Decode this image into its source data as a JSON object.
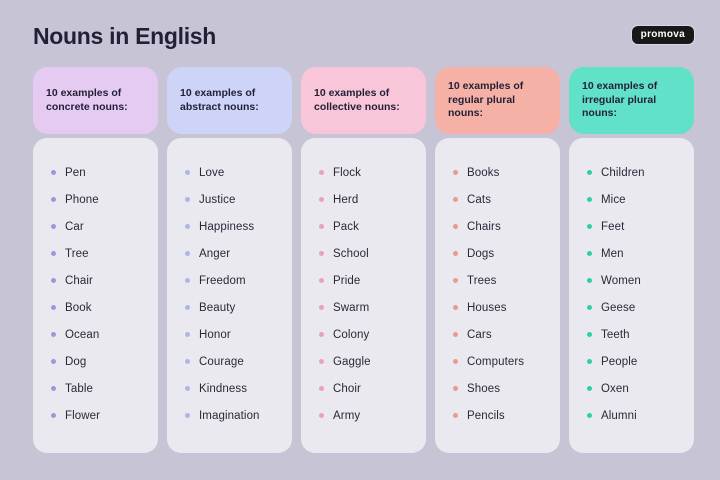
{
  "page": {
    "title": "Nouns in English",
    "logo": "promova",
    "background_color": "#c7c4d6",
    "card_color": "#eae9ef",
    "text_color": "#221f36"
  },
  "columns": [
    {
      "label": "10 examples of concrete nouns:",
      "header_bg": "#e5caf2",
      "bullet_color": "#a993d4",
      "items": [
        "Pen",
        "Phone",
        "Car",
        "Tree",
        "Chair",
        "Book",
        "Ocean",
        "Dog",
        "Table",
        "Flower"
      ]
    },
    {
      "label": "10 examples of abstract nouns:",
      "header_bg": "#cdd4f8",
      "bullet_color": "#abb6e9",
      "items": [
        "Love",
        "Justice",
        "Happiness",
        "Anger",
        "Freedom",
        "Beauty",
        "Honor",
        "Courage",
        "Kindness",
        "Imagination"
      ]
    },
    {
      "label": "10 examples of collective nouns:",
      "header_bg": "#f9c5d8",
      "bullet_color": "#eca0c0",
      "items": [
        "Flock",
        "Herd",
        "Pack",
        "School",
        "Pride",
        "Swarm",
        "Colony",
        "Gaggle",
        "Choir",
        "Army"
      ]
    },
    {
      "label": "10 examples of regular plural nouns:",
      "header_bg": "#f5b1a5",
      "bullet_color": "#eb9a8c",
      "items": [
        "Books",
        "Cats",
        "Chairs",
        "Dogs",
        "Trees",
        "Houses",
        "Cars",
        "Computers",
        "Shoes",
        "Pencils"
      ]
    },
    {
      "label": "10 examples of irregular plural nouns:",
      "header_bg": "#61e1c7",
      "bullet_color": "#2fcdab",
      "items": [
        "Children",
        "Mice",
        "Feet",
        "Men",
        "Women",
        "Geese",
        "Teeth",
        "People",
        "Oxen",
        "Alumni"
      ]
    }
  ]
}
